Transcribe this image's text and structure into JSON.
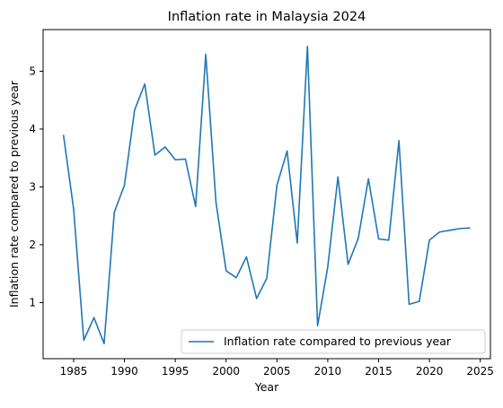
{
  "chart_data": {
    "type": "line",
    "title": "Inflation rate in Malaysia 2024",
    "xlabel": "Year",
    "ylabel": "Inflation rate compared to previous year",
    "xlim": [
      1982.0,
      2026.0
    ],
    "ylim": [
      0.03,
      5.72
    ],
    "xticks": [
      1985,
      1990,
      1995,
      2000,
      2005,
      2010,
      2015,
      2020,
      2025
    ],
    "yticks": [
      1,
      2,
      3,
      4,
      5
    ],
    "grid": false,
    "legend_position": "lower-right",
    "color": "#1f77b4",
    "series": [
      {
        "name": "Inflation rate compared to previous year",
        "x": [
          1984,
          1985,
          1986,
          1987,
          1988,
          1989,
          1990,
          1991,
          1992,
          1993,
          1994,
          1995,
          1996,
          1997,
          1998,
          1999,
          2000,
          2001,
          2002,
          2003,
          2004,
          2005,
          2006,
          2007,
          2008,
          2009,
          2010,
          2011,
          2012,
          2013,
          2014,
          2015,
          2016,
          2017,
          2018,
          2019,
          2020,
          2021,
          2022,
          2023,
          2024
        ],
        "values": [
          3.9,
          2.62,
          0.35,
          0.74,
          0.29,
          2.56,
          3.03,
          4.33,
          4.78,
          3.55,
          3.69,
          3.47,
          3.48,
          2.66,
          5.29,
          2.74,
          1.55,
          1.43,
          1.79,
          1.07,
          1.42,
          3.03,
          3.62,
          2.03,
          5.43,
          0.6,
          1.62,
          3.17,
          1.66,
          2.11,
          3.14,
          2.1,
          2.08,
          3.8,
          0.97,
          1.02,
          2.08,
          2.22,
          2.25,
          2.28,
          2.29
        ]
      }
    ]
  }
}
